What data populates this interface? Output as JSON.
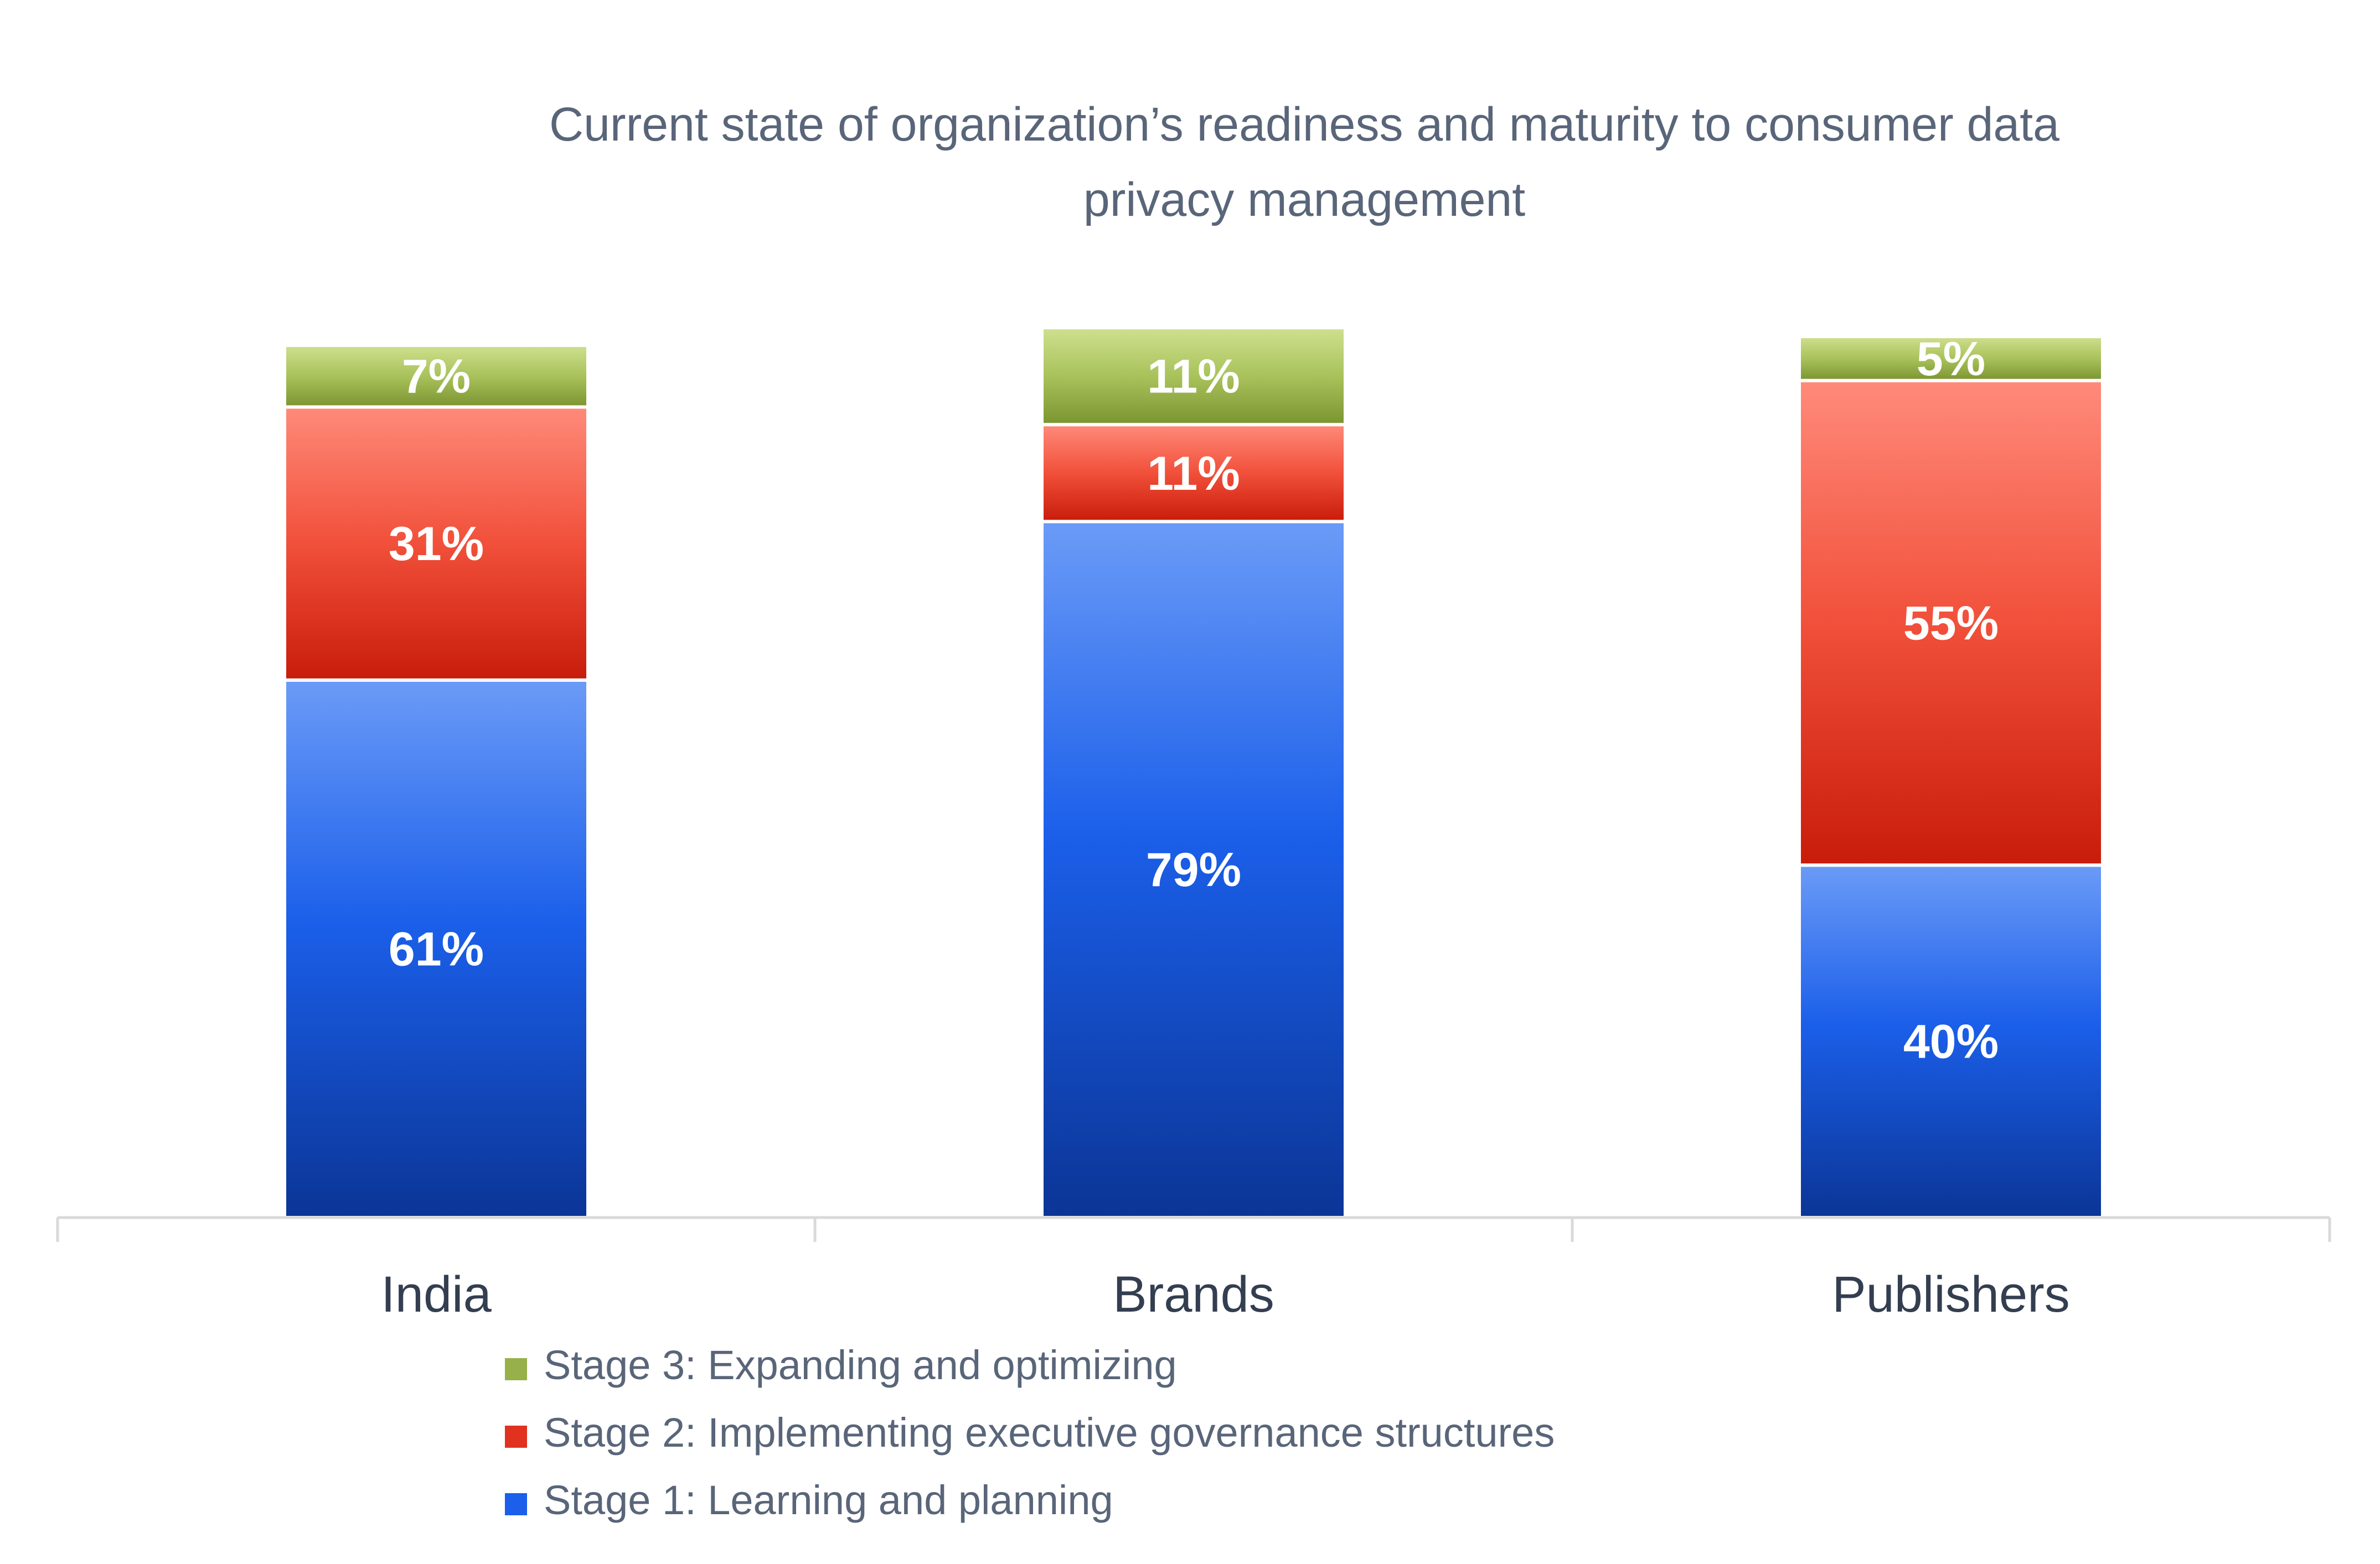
{
  "colors": {
    "stage1": "#1b5fea",
    "stage2": "#e0321f",
    "stage3": "#97b04a",
    "axis": "#d9d9d9",
    "title": "#596579",
    "category": "#333e50"
  },
  "chart_data": {
    "type": "bar",
    "stacked": true,
    "title_lines": [
      "Current state of organization’s readiness and maturity to consumer data",
      "privacy management"
    ],
    "categories": [
      "India",
      "Brands",
      "Publishers"
    ],
    "series": [
      {
        "name": "Stage 1: Learning and planning",
        "values": [
          61,
          79,
          40
        ],
        "labels": [
          "61%",
          "79%",
          "40%"
        ]
      },
      {
        "name": "Stage 2: Implementing executive governance structures",
        "values": [
          31,
          11,
          55
        ],
        "labels": [
          "31%",
          "11%",
          "55%"
        ]
      },
      {
        "name": "Stage 3: Expanding and optimizing",
        "values": [
          7,
          11,
          5
        ],
        "labels": [
          "7%",
          "11%",
          "5%"
        ]
      }
    ],
    "legend_order": [
      2,
      1,
      0
    ],
    "legend_position": "bottom",
    "grid": false,
    "ylim": [
      0,
      100
    ]
  }
}
